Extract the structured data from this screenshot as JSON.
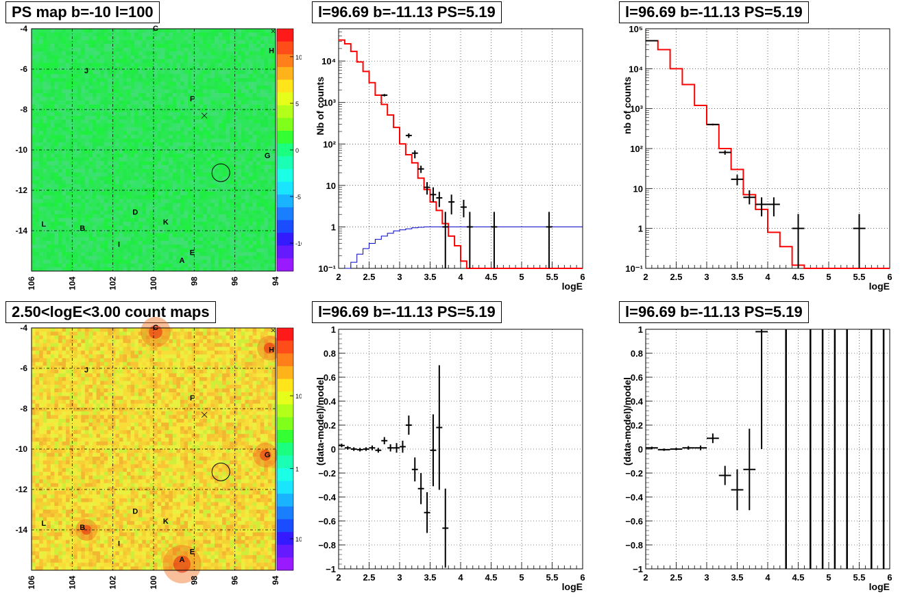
{
  "chart_data": [
    {
      "id": "ps_map",
      "type": "heatmap",
      "title": "PS map b=-10 l=100",
      "xlim": [
        106,
        94
      ],
      "ylim": [
        -16,
        -4
      ],
      "xticks": [
        "106",
        "104",
        "102",
        "100",
        "98",
        "96",
        "94"
      ],
      "yticks": [
        "-4",
        "-6",
        "-8",
        "-10",
        "-12",
        "-14"
      ],
      "colorbar_ticks": [
        "10",
        "5",
        "0",
        "-5",
        "-10"
      ],
      "colorbar_range": [
        -13,
        13
      ],
      "grid": true,
      "sources": [
        {
          "label": "A",
          "l": 98.6,
          "b": -15.6
        },
        {
          "label": "B",
          "l": 103.5,
          "b": -14.0
        },
        {
          "label": "C",
          "l": 99.9,
          "b": -4.1
        },
        {
          "label": "D",
          "l": 100.9,
          "b": -13.2
        },
        {
          "label": "E",
          "l": 98.1,
          "b": -15.2
        },
        {
          "label": "F",
          "l": 98.1,
          "b": -7.6
        },
        {
          "label": "G",
          "l": 94.4,
          "b": -10.4
        },
        {
          "label": "H",
          "l": 94.2,
          "b": -5.2
        },
        {
          "label": "I",
          "l": 101.7,
          "b": -14.8
        },
        {
          "label": "J",
          "l": 103.3,
          "b": -6.2
        },
        {
          "label": "K",
          "l": 99.4,
          "b": -13.7
        },
        {
          "label": "L",
          "l": 105.4,
          "b": -13.8
        }
      ],
      "circle": {
        "l": 96.69,
        "b": -11.13
      },
      "cross": {
        "l": 97.5,
        "b": -8.3
      }
    },
    {
      "id": "count_map",
      "type": "heatmap",
      "title": "2.50<logE<3.00 count maps",
      "xlim": [
        106,
        94
      ],
      "ylim": [
        -16,
        -4
      ],
      "xticks": [
        "106",
        "104",
        "102",
        "100",
        "98",
        "96",
        "94"
      ],
      "yticks": [
        "-4",
        "-6",
        "-8",
        "-10",
        "-12",
        "-14"
      ],
      "colorbar_ticks": [
        "10",
        "1",
        "10⁻¹"
      ],
      "colorbar_scale": "log",
      "grid": true
    },
    {
      "id": "spec_left",
      "type": "line",
      "title": "l=96.69 b=-11.13 PS=5.19",
      "xlabel": "logE",
      "ylabel": "Nb of counts",
      "xlim": [
        2,
        6
      ],
      "ylim": [
        0.1,
        60000
      ],
      "yscale": "log",
      "xticks": [
        "2",
        "2.5",
        "3",
        "3.5",
        "4",
        "4.5",
        "5",
        "5.5",
        "6"
      ],
      "yticks": [
        "10⁻¹",
        "1",
        "10",
        "10²",
        "10³",
        "10⁴"
      ],
      "grid": true,
      "model_steps": {
        "edges": [
          2,
          2.1,
          2.2,
          2.3,
          2.4,
          2.5,
          2.6,
          2.7,
          2.8,
          2.9,
          3.0,
          3.1,
          3.2,
          3.3,
          3.4,
          3.5,
          3.6,
          3.7,
          3.8,
          3.9,
          4.0,
          4.1,
          4.2,
          6.0
        ],
        "values": [
          32000,
          26000,
          17000,
          9500,
          5600,
          3000,
          1500,
          900,
          500,
          250,
          100,
          55,
          35,
          15,
          8,
          4,
          2.5,
          1.2,
          0.6,
          0.35,
          0.15,
          0.1,
          0.08
        ]
      },
      "source_steps": {
        "edges": [
          2.1,
          2.2,
          2.3,
          2.4,
          2.5,
          2.6,
          2.7,
          2.8,
          2.9,
          3.0,
          3.1,
          3.2,
          3.3,
          3.4,
          3.5,
          3.6,
          3.7,
          3.8,
          3.9,
          4.0,
          6.0
        ],
        "values": [
          0.1,
          0.14,
          0.22,
          0.3,
          0.4,
          0.5,
          0.6,
          0.7,
          0.8,
          0.85,
          0.9,
          0.95,
          0.98,
          1.0,
          1.0,
          1.0,
          1.0,
          1.0,
          1.0,
          1.0
        ]
      },
      "points": [
        {
          "x": 2.75,
          "y": 1500,
          "ylo": 1400,
          "yhi": 1600
        },
        {
          "x": 3.15,
          "y": 160,
          "ylo": 140,
          "yhi": 180
        },
        {
          "x": 3.25,
          "y": 60,
          "ylo": 45,
          "yhi": 70
        },
        {
          "x": 3.35,
          "y": 25,
          "ylo": 20,
          "yhi": 30
        },
        {
          "x": 3.45,
          "y": 9,
          "ylo": 6,
          "yhi": 12
        },
        {
          "x": 3.55,
          "y": 6,
          "ylo": 4,
          "yhi": 9
        },
        {
          "x": 3.65,
          "y": 5,
          "ylo": 3,
          "yhi": 7
        },
        {
          "x": 3.85,
          "y": 4,
          "ylo": 2,
          "yhi": 6
        },
        {
          "x": 4.05,
          "y": 3,
          "ylo": 1.7,
          "yhi": 4.5
        },
        {
          "x": 3.75,
          "y": 1,
          "ylo": 0.1,
          "yhi": 2.3
        },
        {
          "x": 4.15,
          "y": 1,
          "ylo": 0.1,
          "yhi": 2.3
        },
        {
          "x": 4.55,
          "y": 1,
          "ylo": 0.1,
          "yhi": 2.3
        },
        {
          "x": 5.45,
          "y": 1,
          "ylo": 0.1,
          "yhi": 2.3
        }
      ]
    },
    {
      "id": "spec_right",
      "type": "line",
      "title": "l=96.69 b=-11.13 PS=5.19",
      "xlabel": "logE",
      "ylabel": "nb of counts",
      "xlim": [
        2,
        6
      ],
      "ylim": [
        0.1,
        100000
      ],
      "yscale": "log",
      "xticks": [
        "2",
        "2.5",
        "3",
        "3.5",
        "4",
        "4.5",
        "5",
        "5.5",
        "6"
      ],
      "yticks": [
        "10⁻¹",
        "1",
        "10",
        "10²",
        "10³",
        "10⁴",
        "10⁵"
      ],
      "grid": true,
      "model_steps": {
        "edges": [
          2,
          2.2,
          2.4,
          2.6,
          2.8,
          3.0,
          3.2,
          3.4,
          3.6,
          3.8,
          4.0,
          4.2,
          4.4,
          4.6,
          6.0
        ],
        "values": [
          50000,
          30000,
          10000,
          4000,
          1200,
          400,
          100,
          30,
          7,
          3,
          0.8,
          0.35,
          0.12,
          0.1
        ]
      },
      "points": [
        {
          "x": 2.1,
          "y": 50000,
          "ylo": 49000,
          "yhi": 51000
        },
        {
          "x": 3.1,
          "y": 400,
          "ylo": 380,
          "yhi": 420
        },
        {
          "x": 3.3,
          "y": 80,
          "ylo": 70,
          "yhi": 90
        },
        {
          "x": 3.5,
          "y": 17,
          "ylo": 12,
          "yhi": 22
        },
        {
          "x": 3.7,
          "y": 6,
          "ylo": 4,
          "yhi": 9
        },
        {
          "x": 3.9,
          "y": 4,
          "ylo": 2,
          "yhi": 6
        },
        {
          "x": 4.1,
          "y": 4,
          "ylo": 2,
          "yhi": 6
        },
        {
          "x": 4.5,
          "y": 1,
          "ylo": 0.1,
          "yhi": 2.3
        },
        {
          "x": 5.5,
          "y": 1,
          "ylo": 0.1,
          "yhi": 2.3
        }
      ]
    },
    {
      "id": "resid_left",
      "type": "scatter",
      "title": "l=96.69 b=-11.13 PS=5.19",
      "xlabel": "logE",
      "ylabel": "(data-model)/model",
      "xlim": [
        2,
        6
      ],
      "ylim": [
        -1,
        1
      ],
      "xticks": [
        "2",
        "2.5",
        "3",
        "3.5",
        "4",
        "4.5",
        "5",
        "5.5",
        "6"
      ],
      "yticks": [
        "-1",
        "-0.8",
        "-0.6",
        "-0.4",
        "-0.2",
        "0",
        "0.2",
        "0.4",
        "0.6",
        "0.8",
        "1"
      ],
      "grid": true,
      "xerr": 0.05,
      "points": [
        {
          "x": 2.05,
          "y": 0.03,
          "e": 0.015
        },
        {
          "x": 2.15,
          "y": 0.01,
          "e": 0.015
        },
        {
          "x": 2.25,
          "y": 0.0,
          "e": 0.015
        },
        {
          "x": 2.35,
          "y": -0.005,
          "e": 0.015
        },
        {
          "x": 2.45,
          "y": 0.0,
          "e": 0.015
        },
        {
          "x": 2.55,
          "y": 0.01,
          "e": 0.02
        },
        {
          "x": 2.65,
          "y": -0.01,
          "e": 0.02
        },
        {
          "x": 2.75,
          "y": 0.07,
          "e": 0.03
        },
        {
          "x": 2.85,
          "y": 0.01,
          "e": 0.03
        },
        {
          "x": 2.95,
          "y": 0.01,
          "e": 0.04
        },
        {
          "x": 3.05,
          "y": 0.02,
          "e": 0.05
        },
        {
          "x": 3.15,
          "y": 0.2,
          "e": 0.08
        },
        {
          "x": 3.25,
          "y": -0.17,
          "e": 0.1
        },
        {
          "x": 3.35,
          "y": -0.33,
          "e": 0.13
        },
        {
          "x": 3.45,
          "y": -0.53,
          "e": 0.17
        },
        {
          "x": 3.55,
          "y": -0.01,
          "e": 0.3
        },
        {
          "x": 3.65,
          "y": 0.18,
          "e": 0.52
        },
        {
          "x": 3.75,
          "y": -0.66,
          "e": 0.33
        }
      ]
    },
    {
      "id": "resid_right",
      "type": "scatter",
      "title": "l=96.69 b=-11.13 PS=5.19",
      "xlabel": "logE",
      "ylabel": "(data-model)/model",
      "xlim": [
        2,
        6
      ],
      "ylim": [
        -1,
        1
      ],
      "xticks": [
        "2",
        "2.5",
        "3",
        "3.5",
        "4",
        "4.5",
        "5",
        "5.5",
        "6"
      ],
      "yticks": [
        "-1",
        "-0.8",
        "-0.6",
        "-0.4",
        "-0.2",
        "0",
        "0.2",
        "0.4",
        "0.6",
        "0.8",
        "1"
      ],
      "grid": true,
      "xerr": 0.1,
      "points": [
        {
          "x": 2.1,
          "y": 0.01,
          "e": 0.01
        },
        {
          "x": 2.3,
          "y": -0.005,
          "e": 0.01
        },
        {
          "x": 2.5,
          "y": 0.0,
          "e": 0.01
        },
        {
          "x": 2.7,
          "y": 0.01,
          "e": 0.015
        },
        {
          "x": 2.9,
          "y": 0.01,
          "e": 0.02
        },
        {
          "x": 3.1,
          "y": 0.09,
          "e": 0.04
        },
        {
          "x": 3.3,
          "y": -0.22,
          "e": 0.08
        },
        {
          "x": 3.5,
          "y": -0.34,
          "e": 0.17
        },
        {
          "x": 3.7,
          "y": -0.17,
          "e": 0.34
        },
        {
          "x": 3.9,
          "y": 0.98,
          "e": 0.98
        }
      ],
      "vlines": [
        4.3,
        4.7,
        4.9,
        5.1,
        5.3,
        5.7,
        5.9
      ]
    }
  ]
}
